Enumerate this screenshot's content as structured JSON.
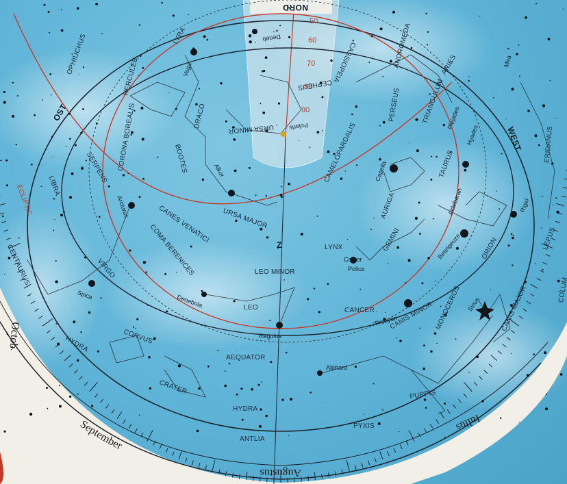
{
  "directions": {
    "north": "NORD",
    "east": "OST",
    "west": "WEST",
    "zenith": "Z"
  },
  "circles": {
    "equator": "AEQUATOR",
    "ecliptic": "ECLIPTIC"
  },
  "constellations": {
    "ophiuchus": "OPHIUCHUS",
    "hercules": "HERCULES",
    "lyra": "LYRA",
    "corona_borealis": "CORONA BOREALIS",
    "draco": "DRACO",
    "bootes": "BOOTES",
    "serpens": "SERPENS",
    "libra": "LIBRA",
    "ursa_minor": "URSA MINOR",
    "cepheus": "CEPHEUS",
    "cassiopeia": "CASSIOPEIA",
    "andromeda": "ANDROMEDA",
    "triangulum": "TRIANGULUM",
    "aries": "ARIES",
    "perseus": "PERSEUS",
    "camelopardalis": "CAMELOPARDALIS",
    "auriga": "AURIGA",
    "taurus": "TAURUS",
    "eridanus": "ERIDANUS",
    "ursa_major": "URSA MAJOR",
    "canes_venatici": "CANES VENATICI",
    "coma_berenices": "COMA BERENICES",
    "centaurus": "CENTAURUS",
    "virgo": "VIRGO",
    "lynx": "LYNX",
    "gemini": "GEMINI",
    "orion": "ORION",
    "lepus": "LEPUS",
    "leo_minor": "LEO MINOR",
    "leo": "LEO",
    "cancer": "CANCER",
    "canis_minor": "CANIS MINOR",
    "monoceros": "MONOCEROS",
    "canis_major": "CANIS MAJOR",
    "hydra": "HYDRA",
    "corvus": "CORVUS",
    "crater": "CRATER",
    "antlia": "ANTLIA",
    "puppis": "PUPPIS",
    "pyxis": "PYXIS",
    "columba": "COLUM"
  },
  "stars": {
    "vega": "Vega",
    "deneb": "Deneb",
    "arcturus": "Arcturus",
    "polaris": "Polaris",
    "alkor": "Alkor",
    "capella": "Capella",
    "pleiades": "Plejades",
    "hyades": "Hyades",
    "aldebaran": "Aldebaran",
    "rigel": "Rigel",
    "castor": "Castor",
    "pollux": "Pollux",
    "betelgeuze": "Betelgeuze",
    "denebola": "Denebola",
    "regulus": "Regulus",
    "spica": "Spica",
    "procyon": "Procyon",
    "sirius": "Sirius",
    "alphard": "Alphard",
    "mira": "Mira"
  },
  "months": {
    "september": "September",
    "august": "Augustus",
    "july": "Iulius",
    "october": "Octob"
  },
  "scale_numbers": [
    "90",
    "80",
    "70",
    "60",
    "50"
  ],
  "colors": {
    "sky": "#5eb3d6",
    "ring": "#f2efe6",
    "red_line": "#c43a2a",
    "dark_line": "#1c2530"
  }
}
